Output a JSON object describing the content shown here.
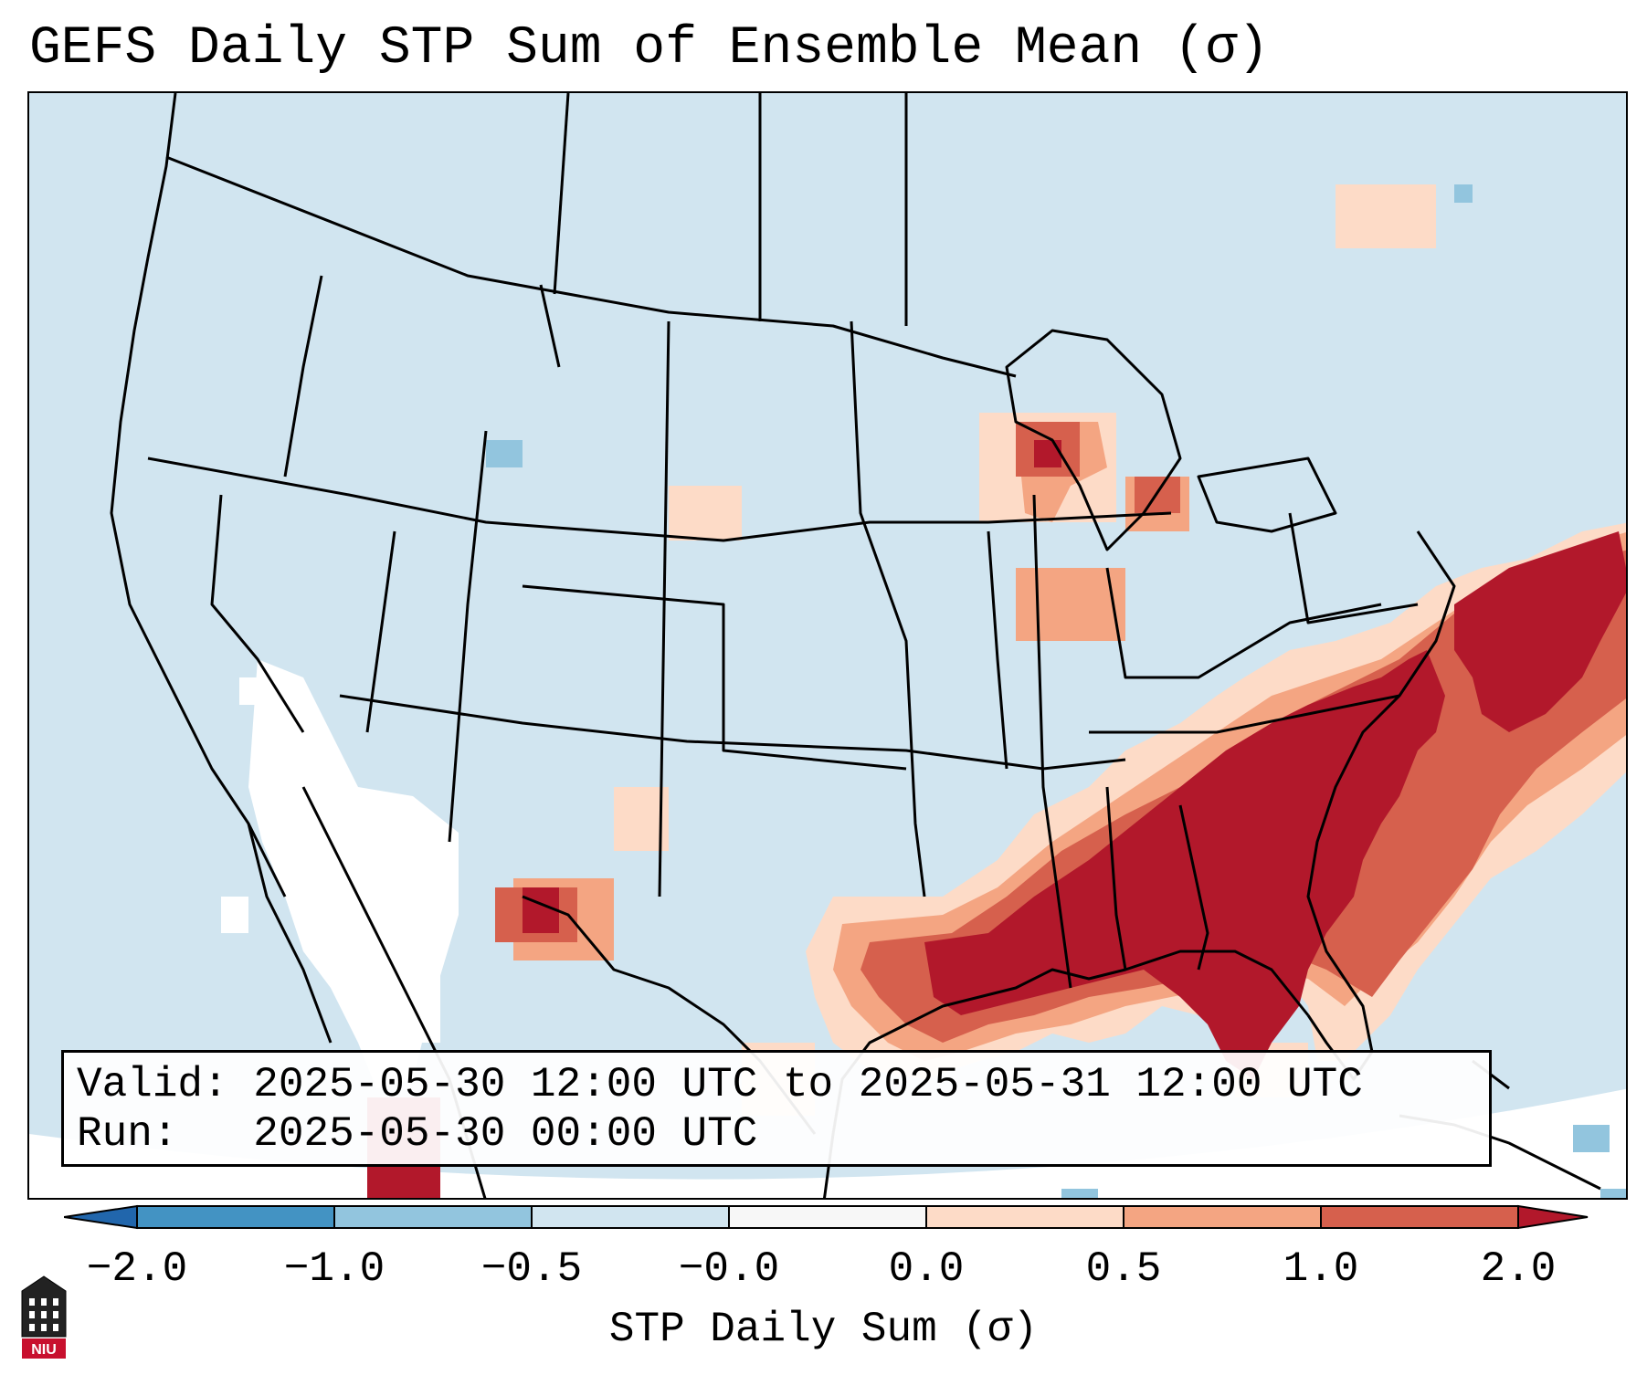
{
  "title": "GEFS Daily STP Sum of Ensemble Mean (σ)",
  "info": {
    "valid_label": "Valid:",
    "valid_value": "2025-05-30 12:00 UTC to 2025-05-31 12:00 UTC",
    "run_label": "Run:",
    "run_value": "2025-05-30 00:00 UTC"
  },
  "colorbar": {
    "label": "STP Daily Sum (σ)",
    "ticks": [
      "−2.0",
      "−1.0",
      "−0.5",
      "−0.0",
      "0.0",
      "0.5",
      "1.0",
      "2.0"
    ],
    "bins": [
      {
        "color": "#2166ac"
      },
      {
        "color": "#4393c3"
      },
      {
        "color": "#92c5de"
      },
      {
        "color": "#d1e5f0"
      },
      {
        "color": "#f7f7f7"
      },
      {
        "color": "#fddbc7"
      },
      {
        "color": "#f4a582"
      },
      {
        "color": "#d6604d"
      },
      {
        "color": "#b2182b"
      }
    ]
  },
  "colors": {
    "background_field": "#d1e5f0",
    "neutral": "#ffffff",
    "light_red": "#fddbc7",
    "mid_red": "#f4a582",
    "red": "#d6604d",
    "dark_red": "#b2182b",
    "light_blue": "#92c5de"
  },
  "logo": {
    "text": "NIU",
    "color": "#c8102e"
  }
}
